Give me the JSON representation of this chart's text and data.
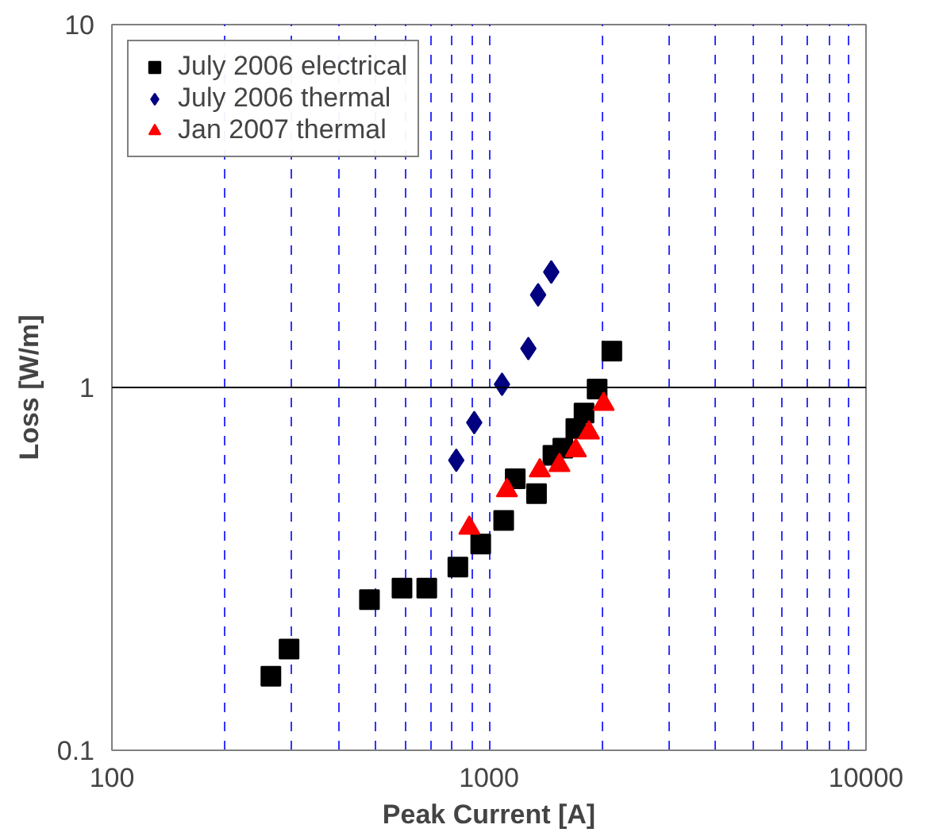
{
  "chart_data": {
    "type": "scatter",
    "xlabel": "Peak Current [A]",
    "ylabel": "Loss [W/m]",
    "log": "xy",
    "xlim": [
      100,
      10000
    ],
    "ylim": [
      0.1,
      10
    ],
    "xticks": [
      100,
      {
        "value": 200,
        "label": null
      },
      {
        "value": 300,
        "label": null
      },
      {
        "value": 400,
        "label": null
      },
      {
        "value": 500,
        "label": null
      },
      {
        "value": 600,
        "label": null
      },
      {
        "value": 700,
        "label": null
      },
      {
        "value": 800,
        "label": null
      },
      {
        "value": 900,
        "label": null
      },
      1000,
      {
        "value": 2000,
        "label": null
      },
      {
        "value": 3000,
        "label": null
      },
      {
        "value": 4000,
        "label": null
      },
      {
        "value": 5000,
        "label": null
      },
      {
        "value": 6000,
        "label": null
      },
      {
        "value": 7000,
        "label": null
      },
      {
        "value": 8000,
        "label": null
      },
      {
        "value": 9000,
        "label": null
      },
      10000
    ],
    "yticks": [
      0.1,
      1,
      10
    ],
    "grid": "x",
    "legend": "top left",
    "ref_lines": [
      {
        "axis": "y",
        "value": 1,
        "color": "#000000"
      }
    ],
    "series": [
      {
        "name": "July 2006 electrical",
        "color": "#000000",
        "marker": "square",
        "x": [
          264,
          295,
          482,
          588,
          684,
          827,
          951,
          1094,
          1174,
          1337,
          1478,
          1570,
          1700,
          1787,
          1936,
          2118
        ],
        "values": [
          0.16,
          0.19,
          0.26,
          0.28,
          0.28,
          0.32,
          0.37,
          0.43,
          0.56,
          0.51,
          0.65,
          0.68,
          0.77,
          0.85,
          0.99,
          1.26
        ]
      },
      {
        "name": "July 2006 thermal",
        "color": "#000080",
        "marker": "diamond",
        "x": [
          819,
          914,
          1083,
          1272,
          1350,
          1463
        ],
        "values": [
          0.63,
          0.8,
          1.02,
          1.28,
          1.8,
          2.08
        ]
      },
      {
        "name": "Jan 2007 thermal",
        "color": "#ff0000",
        "marker": "triangle",
        "x": [
          887,
          1116,
          1364,
          1538,
          1700,
          1842,
          2015
        ],
        "values": [
          0.41,
          0.52,
          0.59,
          0.61,
          0.67,
          0.75,
          0.9
        ]
      }
    ]
  }
}
